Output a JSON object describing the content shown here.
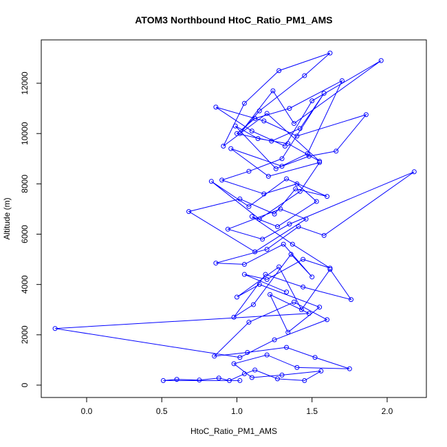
{
  "chart_data": {
    "type": "line",
    "title": "ATOM3 Northbound HtoC_Ratio_PM1_AMS",
    "x_label": "HtoC_Ratio_PM1_AMS",
    "y_label": "Altitude (m)",
    "color": "#0000ff",
    "markers": true,
    "grid": false,
    "xlim": [
      -0.302,
      2.261
    ],
    "ylim": [
      -492,
      13723
    ],
    "xticks": [
      {
        "value": 0,
        "label": "0.0"
      },
      0.5,
      {
        "value": 1,
        "label": "1.0"
      },
      1.5,
      {
        "value": 2,
        "label": "2.0"
      }
    ],
    "yticks": [
      0,
      2000,
      4000,
      6000,
      8000,
      10000,
      12000
    ],
    "x": [
      1.02,
      0.51,
      0.6,
      0.75,
      0.88,
      0.95,
      1.05,
      1.12,
      1.27,
      1.45,
      1.56,
      1.3,
      1.1,
      0.98,
      1.2,
      1.4,
      1.75,
      1.52,
      1.33,
      1.07,
      0.85,
      1.08,
      1.38,
      1.6,
      1.25,
      1.02,
      -0.21,
      1.48,
      1.22,
      1.34,
      1.55,
      1.15,
      1.0,
      1.28,
      1.43,
      1.62,
      1.76,
      1.44,
      1.19,
      0.98,
      1.11,
      1.36,
      1.5,
      1.31,
      1.05,
      0.86,
      1.2,
      1.41,
      1.58,
      2.18,
      1.35,
      1.17,
      0.94,
      1.29,
      1.46,
      1.12,
      0.68,
      1.02,
      1.25,
      1.39,
      1.6,
      1.33,
      1.08,
      0.83,
      1.15,
      1.42,
      1.55,
      1.21,
      0.96,
      1.3,
      1.48,
      1.66,
      1.86,
      1.4,
      1.18,
      0.86,
      1.1,
      1.32,
      1.5,
      1.96,
      1.38,
      1.24,
      1.02,
      1.15,
      1.45,
      1.62,
      1.28,
      1.05,
      0.91,
      1.2,
      1.55,
      1.34,
      1.14,
      0.99,
      1.26,
      1.47,
      1.7,
      1.35,
      1.12,
      1.0,
      1.23,
      1.42,
      1.58,
      1.3,
      1.08,
      0.9,
      1.18,
      1.4,
      1.53,
      1.27,
      1.1,
      1.37,
      1.62,
      1.44,
      1.2,
      1.05,
      1.33
    ],
    "values": [
      180,
      180,
      230,
      200,
      280,
      180,
      450,
      600,
      250,
      180,
      560,
      400,
      300,
      850,
      1200,
      700,
      650,
      1100,
      1500,
      1300,
      1150,
      2500,
      3300,
      2600,
      1800,
      1100,
      2250,
      2850,
      3600,
      2100,
      3100,
      4000,
      3500,
      4700,
      3000,
      4600,
      3400,
      3900,
      4400,
      2700,
      3200,
      5200,
      4300,
      5600,
      4800,
      4850,
      5400,
      6300,
      5950,
      8480,
      6400,
      5800,
      6200,
      7000,
      6600,
      5300,
      6900,
      7400,
      6800,
      7800,
      7500,
      8200,
      7100,
      8100,
      6600,
      7700,
      8850,
      8300,
      9400,
      8700,
      9100,
      9300,
      10750,
      9900,
      10500,
      11050,
      10100,
      9500,
      11300,
      12900,
      10400,
      11700,
      10000,
      10900,
      12300,
      13200,
      12500,
      11200,
      9500,
      10800,
      8900,
      9600,
      9800,
      10300,
      8600,
      9200,
      12100,
      11000,
      10600,
      10000,
      9700,
      10200,
      11600,
      9000,
      8500,
      8150,
      7600,
      8000,
      7300,
      6300,
      6700,
      5600,
      4650,
      5000,
      4200,
      4400,
      3700
    ]
  }
}
